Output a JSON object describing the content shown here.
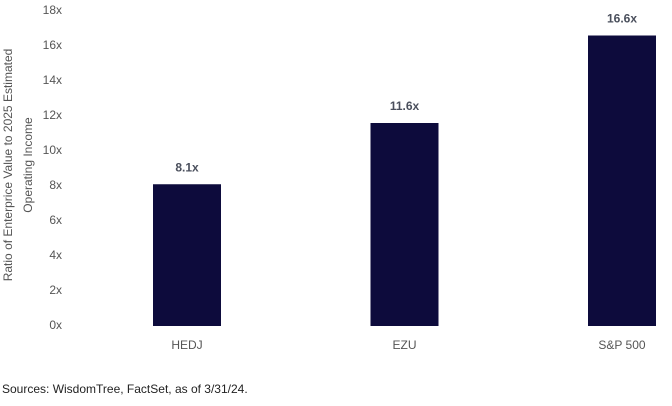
{
  "chart_data": {
    "type": "bar",
    "ylabel": [
      "Ratio of Enterprice Value to 2025 Estimated",
      "Operating Income"
    ],
    "categories": [
      "HEDJ",
      "EZU",
      "S&P 500"
    ],
    "values": [
      8.1,
      11.6,
      16.6
    ],
    "value_labels": [
      "8.1x",
      "11.6x",
      "16.6x"
    ],
    "color": "#0d0b3c",
    "ylim": [
      0,
      18
    ],
    "yticks": [
      {
        "value": 0,
        "label": "0x"
      },
      {
        "value": 2,
        "label": "2x"
      },
      {
        "value": 4,
        "label": "4x"
      },
      {
        "value": 6,
        "label": "6x"
      },
      {
        "value": 8,
        "label": "8x"
      },
      {
        "value": 10,
        "label": "10x"
      },
      {
        "value": 12,
        "label": "12x"
      },
      {
        "value": 14,
        "label": "14x"
      },
      {
        "value": 16,
        "label": "16x"
      },
      {
        "value": 18,
        "label": "18x"
      }
    ],
    "grid": false,
    "source": "Sources: WisdomTree, FactSet, as of 3/31/24."
  }
}
